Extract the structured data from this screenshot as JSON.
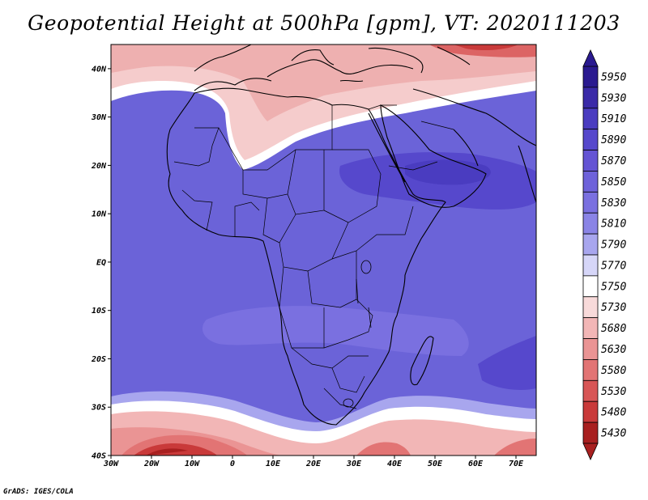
{
  "title": "Geopotential Height at 500hPa [gpm], VT: 2020111203",
  "credit": "GrADS: IGES/COLA",
  "map": {
    "lon_range": [
      -30,
      75
    ],
    "lat_range": [
      -40,
      45
    ],
    "lat_labels": [
      "40N",
      "30N",
      "20N",
      "10N",
      "EQ",
      "10S",
      "20S",
      "30S",
      "40S"
    ],
    "lat_values": [
      40,
      30,
      20,
      10,
      0,
      -10,
      -20,
      -30,
      -40
    ],
    "lon_labels": [
      "30W",
      "20W",
      "10W",
      "0",
      "10E",
      "20E",
      "30E",
      "40E",
      "50E",
      "60E",
      "70E"
    ],
    "lon_values": [
      -30,
      -20,
      -10,
      0,
      10,
      20,
      30,
      40,
      50,
      60,
      70
    ]
  },
  "colorbar": {
    "levels": [
      "5950",
      "5930",
      "5910",
      "5890",
      "5870",
      "5850",
      "5830",
      "5810",
      "5790",
      "5770",
      "5750",
      "5730",
      "5680",
      "5630",
      "5580",
      "5530",
      "5480",
      "5430"
    ],
    "colors": [
      "#2a1a90",
      "#3a2aa8",
      "#4a3cc0",
      "#5648cc",
      "#6454d4",
      "#6e62da",
      "#7a70e0",
      "#8a84e6",
      "#a8a6ee",
      "#d6d6f8",
      "#ffffff",
      "#f8dada",
      "#f2b6b6",
      "#ea9494",
      "#e27474",
      "#d85656",
      "#c93a3a",
      "#a82020"
    ]
  }
}
